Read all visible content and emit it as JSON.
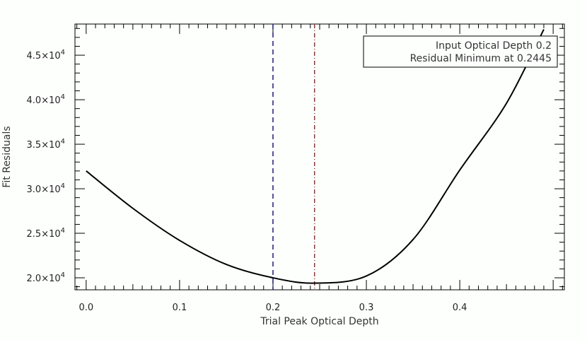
{
  "chart_data": {
    "type": "line",
    "title": "",
    "xlabel": "Trial Peak Optical Depth",
    "ylabel": "Fit Residuals",
    "xlim": [
      -0.012,
      0.512
    ],
    "ylim": [
      18650,
      48500
    ],
    "grid": false,
    "x_ticks": [
      "0.0",
      "0.1",
      "0.2",
      "0.3",
      "0.4"
    ],
    "x_tick_values": [
      0.0,
      0.1,
      0.2,
      0.3,
      0.4
    ],
    "y_tick_values": [
      20000,
      25000,
      30000,
      35000,
      40000,
      45000
    ],
    "y_ticks": [
      {
        "mant": "2.0",
        "exp": "4"
      },
      {
        "mant": "2.5",
        "exp": "4"
      },
      {
        "mant": "3.0",
        "exp": "4"
      },
      {
        "mant": "3.5",
        "exp": "4"
      },
      {
        "mant": "4.0",
        "exp": "4"
      },
      {
        "mant": "4.5",
        "exp": "4"
      }
    ],
    "series": [
      {
        "name": "Fit Residuals",
        "color": "#000000",
        "x": [
          0.0,
          0.05,
          0.1,
          0.15,
          0.2,
          0.2445,
          0.3,
          0.35,
          0.4,
          0.45,
          0.49
        ],
        "y": [
          32000,
          27800,
          24200,
          21500,
          20000,
          19400,
          20200,
          24300,
          32100,
          39600,
          47900
        ]
      }
    ],
    "vlines": [
      {
        "x": 0.2,
        "color": "#1a1a7a",
        "style": "dashed",
        "label": "Input Optical Depth 0.2"
      },
      {
        "x": 0.2445,
        "color": "#a03030",
        "style": "dashdot",
        "label": "Residual Minimum at 0.2445"
      }
    ],
    "legend": {
      "position": "upper right",
      "entries": [
        {
          "text": "Input Optical Depth 0.2",
          "color": "#2a2a6a"
        },
        {
          "text": "Residual Minimum at 0.2445",
          "color": "#7a3a3a"
        }
      ]
    }
  }
}
